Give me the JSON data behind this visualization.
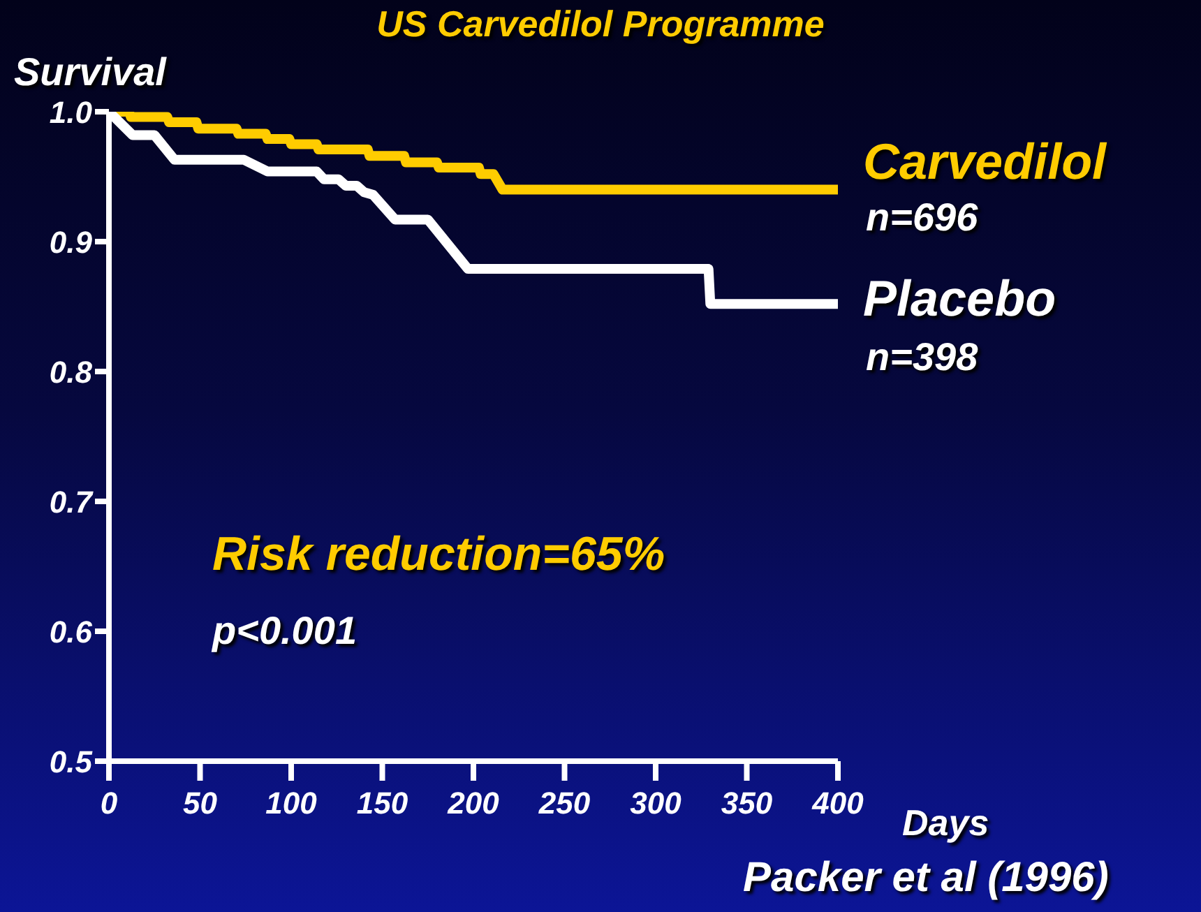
{
  "chart_data": {
    "type": "line",
    "title": "US Carvedilol Programme",
    "xlabel": "Days",
    "ylabel": "Survival",
    "xlim": [
      0,
      400
    ],
    "xticks": [
      0,
      50,
      100,
      150,
      200,
      250,
      300,
      350,
      400
    ],
    "ylim": [
      0.5,
      1.0
    ],
    "yticks": [
      0.5,
      0.6,
      0.7,
      0.8,
      0.9,
      {
        "value": 1.0,
        "label": "1.0"
      }
    ],
    "series": [
      {
        "name": "Carvedilol",
        "color": "#ffcc00",
        "x": [
          0,
          11,
          12,
          32,
          33,
          48,
          49,
          70,
          71,
          86,
          87,
          99,
          100,
          114,
          115,
          142,
          143,
          162,
          163,
          180,
          181,
          203,
          204,
          211,
          216,
          400
        ],
        "values": [
          1.0,
          1.0,
          0.996,
          0.996,
          0.992,
          0.992,
          0.987,
          0.987,
          0.983,
          0.983,
          0.979,
          0.979,
          0.975,
          0.975,
          0.971,
          0.971,
          0.966,
          0.966,
          0.961,
          0.961,
          0.957,
          0.957,
          0.952,
          0.952,
          0.94,
          0.94
        ]
      },
      {
        "name": "Placebo",
        "color": "#ffffff",
        "x": [
          0,
          13,
          25,
          36,
          74,
          87,
          114,
          118,
          126,
          130,
          136,
          140,
          145,
          157,
          175,
          197,
          329,
          330,
          400
        ],
        "values": [
          1.0,
          0.982,
          0.982,
          0.963,
          0.963,
          0.954,
          0.954,
          0.948,
          0.948,
          0.943,
          0.943,
          0.938,
          0.936,
          0.917,
          0.917,
          0.879,
          0.879,
          0.852,
          0.852
        ]
      }
    ],
    "annotations": [
      "n=696",
      "n=398",
      "Risk reduction=65%",
      "p<0.001",
      "Packer et al (1996)"
    ]
  }
}
